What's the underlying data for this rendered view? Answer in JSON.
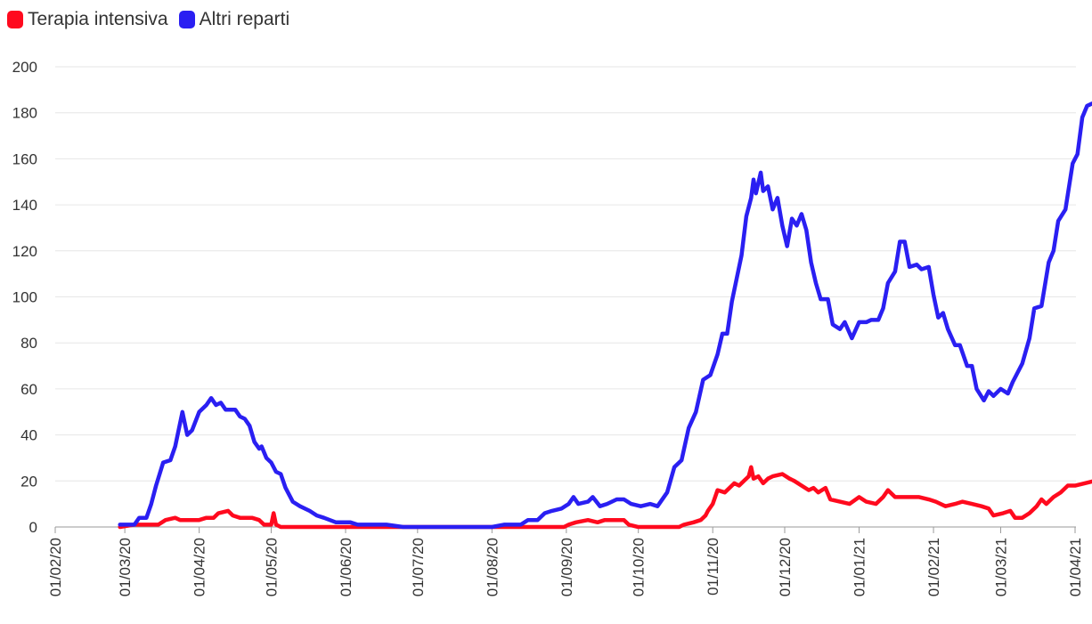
{
  "chart_data": {
    "type": "line",
    "title": "",
    "xlabel": "",
    "ylabel": "",
    "ylim": [
      0,
      200
    ],
    "yticks": [
      0,
      20,
      40,
      60,
      80,
      100,
      120,
      140,
      160,
      180,
      200
    ],
    "x_domain": [
      "2020-02-01",
      "2021-04-01"
    ],
    "xticks": [
      "01/02/20",
      "01/03/20",
      "01/04/20",
      "01/05/20",
      "01/06/20",
      "01/07/20",
      "01/08/20",
      "01/09/20",
      "01/10/20",
      "01/11/20",
      "01/12/20",
      "01/01/21",
      "01/02/21",
      "01/03/21",
      "01/04/21"
    ],
    "grid": true,
    "legend_position": "top-left",
    "series": [
      {
        "name": "Terapia intensiva",
        "color": "#ff0a1e",
        "points": [
          [
            "2020-02-28",
            0
          ],
          [
            "2020-03-05",
            1
          ],
          [
            "2020-03-15",
            1
          ],
          [
            "2020-03-18",
            3
          ],
          [
            "2020-03-22",
            4
          ],
          [
            "2020-03-24",
            3
          ],
          [
            "2020-04-01",
            3
          ],
          [
            "2020-04-04",
            4
          ],
          [
            "2020-04-07",
            4
          ],
          [
            "2020-04-09",
            6
          ],
          [
            "2020-04-13",
            7
          ],
          [
            "2020-04-15",
            5
          ],
          [
            "2020-04-18",
            4
          ],
          [
            "2020-04-23",
            4
          ],
          [
            "2020-04-26",
            3
          ],
          [
            "2020-04-28",
            1
          ],
          [
            "2020-05-01",
            1
          ],
          [
            "2020-05-02",
            6
          ],
          [
            "2020-05-03",
            1
          ],
          [
            "2020-05-05",
            0
          ],
          [
            "2020-06-01",
            0
          ],
          [
            "2020-07-01",
            0
          ],
          [
            "2020-08-01",
            0
          ],
          [
            "2020-08-31",
            0
          ],
          [
            "2020-09-02",
            1
          ],
          [
            "2020-09-05",
            2
          ],
          [
            "2020-09-10",
            3
          ],
          [
            "2020-09-14",
            2
          ],
          [
            "2020-09-17",
            3
          ],
          [
            "2020-09-25",
            3
          ],
          [
            "2020-09-27",
            1
          ],
          [
            "2020-10-01",
            0
          ],
          [
            "2020-10-18",
            0
          ],
          [
            "2020-10-20",
            1
          ],
          [
            "2020-10-24",
            2
          ],
          [
            "2020-10-27",
            3
          ],
          [
            "2020-10-29",
            5
          ],
          [
            "2020-10-30",
            7
          ],
          [
            "2020-11-01",
            10
          ],
          [
            "2020-11-03",
            16
          ],
          [
            "2020-11-06",
            15
          ],
          [
            "2020-11-08",
            17
          ],
          [
            "2020-11-10",
            19
          ],
          [
            "2020-11-12",
            18
          ],
          [
            "2020-11-14",
            20
          ],
          [
            "2020-11-16",
            22
          ],
          [
            "2020-11-17",
            26
          ],
          [
            "2020-11-18",
            21
          ],
          [
            "2020-11-20",
            22
          ],
          [
            "2020-11-22",
            19
          ],
          [
            "2020-11-24",
            21
          ],
          [
            "2020-11-26",
            22
          ],
          [
            "2020-11-30",
            23
          ],
          [
            "2020-12-03",
            21
          ],
          [
            "2020-12-05",
            20
          ],
          [
            "2020-12-08",
            18
          ],
          [
            "2020-12-11",
            16
          ],
          [
            "2020-12-13",
            17
          ],
          [
            "2020-12-15",
            15
          ],
          [
            "2020-12-18",
            17
          ],
          [
            "2020-12-20",
            12
          ],
          [
            "2020-12-24",
            11
          ],
          [
            "2020-12-28",
            10
          ],
          [
            "2021-01-01",
            13
          ],
          [
            "2021-01-04",
            11
          ],
          [
            "2021-01-08",
            10
          ],
          [
            "2021-01-11",
            13
          ],
          [
            "2021-01-13",
            16
          ],
          [
            "2021-01-16",
            13
          ],
          [
            "2021-01-20",
            13
          ],
          [
            "2021-01-24",
            13
          ],
          [
            "2021-01-26",
            13
          ],
          [
            "2021-01-30",
            12
          ],
          [
            "2021-02-02",
            11
          ],
          [
            "2021-02-06",
            9
          ],
          [
            "2021-02-10",
            10
          ],
          [
            "2021-02-13",
            11
          ],
          [
            "2021-02-17",
            10
          ],
          [
            "2021-02-21",
            9
          ],
          [
            "2021-02-24",
            8
          ],
          [
            "2021-02-26",
            5
          ],
          [
            "2021-03-02",
            6
          ],
          [
            "2021-03-05",
            7
          ],
          [
            "2021-03-07",
            4
          ],
          [
            "2021-03-10",
            4
          ],
          [
            "2021-03-13",
            6
          ],
          [
            "2021-03-16",
            9
          ],
          [
            "2021-03-18",
            12
          ],
          [
            "2021-03-20",
            10
          ],
          [
            "2021-03-23",
            13
          ],
          [
            "2021-03-26",
            15
          ],
          [
            "2021-03-29",
            18
          ],
          [
            "2021-04-01",
            18
          ],
          [
            "2021-04-05",
            19
          ],
          [
            "2021-04-09",
            20
          ],
          [
            "2021-04-11",
            20
          ]
        ]
      },
      {
        "name": "Altri reparti",
        "color": "#2a1ff2",
        "points": [
          [
            "2020-02-28",
            1
          ],
          [
            "2020-03-05",
            1
          ],
          [
            "2020-03-07",
            4
          ],
          [
            "2020-03-10",
            4
          ],
          [
            "2020-03-12",
            10
          ],
          [
            "2020-03-14",
            18
          ],
          [
            "2020-03-17",
            28
          ],
          [
            "2020-03-20",
            29
          ],
          [
            "2020-03-22",
            35
          ],
          [
            "2020-03-25",
            50
          ],
          [
            "2020-03-27",
            40
          ],
          [
            "2020-03-29",
            42
          ],
          [
            "2020-04-01",
            50
          ],
          [
            "2020-04-04",
            53
          ],
          [
            "2020-04-06",
            56
          ],
          [
            "2020-04-08",
            53
          ],
          [
            "2020-04-10",
            54
          ],
          [
            "2020-04-12",
            51
          ],
          [
            "2020-04-16",
            51
          ],
          [
            "2020-04-18",
            48
          ],
          [
            "2020-04-20",
            47
          ],
          [
            "2020-04-22",
            44
          ],
          [
            "2020-04-24",
            37
          ],
          [
            "2020-04-26",
            34
          ],
          [
            "2020-04-27",
            35
          ],
          [
            "2020-04-29",
            30
          ],
          [
            "2020-05-01",
            28
          ],
          [
            "2020-05-03",
            24
          ],
          [
            "2020-05-05",
            23
          ],
          [
            "2020-05-07",
            17
          ],
          [
            "2020-05-10",
            11
          ],
          [
            "2020-05-13",
            9
          ],
          [
            "2020-05-17",
            7
          ],
          [
            "2020-05-20",
            5
          ],
          [
            "2020-05-23",
            4
          ],
          [
            "2020-05-28",
            2
          ],
          [
            "2020-06-03",
            2
          ],
          [
            "2020-06-06",
            1
          ],
          [
            "2020-06-12",
            1
          ],
          [
            "2020-06-18",
            1
          ],
          [
            "2020-06-25",
            0
          ],
          [
            "2020-07-15",
            0
          ],
          [
            "2020-08-01",
            0
          ],
          [
            "2020-08-06",
            1
          ],
          [
            "2020-08-13",
            1
          ],
          [
            "2020-08-16",
            3
          ],
          [
            "2020-08-20",
            3
          ],
          [
            "2020-08-23",
            6
          ],
          [
            "2020-08-26",
            7
          ],
          [
            "2020-08-30",
            8
          ],
          [
            "2020-09-02",
            10
          ],
          [
            "2020-09-04",
            13
          ],
          [
            "2020-09-06",
            10
          ],
          [
            "2020-09-10",
            11
          ],
          [
            "2020-09-12",
            13
          ],
          [
            "2020-09-15",
            9
          ],
          [
            "2020-09-18",
            10
          ],
          [
            "2020-09-22",
            12
          ],
          [
            "2020-09-25",
            12
          ],
          [
            "2020-09-28",
            10
          ],
          [
            "2020-10-02",
            9
          ],
          [
            "2020-10-06",
            10
          ],
          [
            "2020-10-09",
            9
          ],
          [
            "2020-10-13",
            15
          ],
          [
            "2020-10-16",
            26
          ],
          [
            "2020-10-19",
            29
          ],
          [
            "2020-10-22",
            43
          ],
          [
            "2020-10-25",
            50
          ],
          [
            "2020-10-28",
            64
          ],
          [
            "2020-10-31",
            66
          ],
          [
            "2020-11-03",
            75
          ],
          [
            "2020-11-05",
            84
          ],
          [
            "2020-11-07",
            84
          ],
          [
            "2020-11-09",
            98
          ],
          [
            "2020-11-11",
            108
          ],
          [
            "2020-11-13",
            118
          ],
          [
            "2020-11-15",
            135
          ],
          [
            "2020-11-17",
            143
          ],
          [
            "2020-11-18",
            151
          ],
          [
            "2020-11-19",
            145
          ],
          [
            "2020-11-21",
            154
          ],
          [
            "2020-11-22",
            146
          ],
          [
            "2020-11-24",
            148
          ],
          [
            "2020-11-26",
            138
          ],
          [
            "2020-11-28",
            143
          ],
          [
            "2020-11-30",
            131
          ],
          [
            "2020-12-02",
            122
          ],
          [
            "2020-12-04",
            134
          ],
          [
            "2020-12-06",
            131
          ],
          [
            "2020-12-08",
            136
          ],
          [
            "2020-12-10",
            129
          ],
          [
            "2020-12-12",
            115
          ],
          [
            "2020-12-14",
            106
          ],
          [
            "2020-12-16",
            99
          ],
          [
            "2020-12-19",
            99
          ],
          [
            "2020-12-21",
            88
          ],
          [
            "2020-12-24",
            86
          ],
          [
            "2020-12-26",
            89
          ],
          [
            "2020-12-29",
            82
          ],
          [
            "2021-01-01",
            89
          ],
          [
            "2021-01-04",
            89
          ],
          [
            "2021-01-06",
            90
          ],
          [
            "2021-01-09",
            90
          ],
          [
            "2021-01-11",
            95
          ],
          [
            "2021-01-13",
            106
          ],
          [
            "2021-01-16",
            111
          ],
          [
            "2021-01-18",
            124
          ],
          [
            "2021-01-20",
            124
          ],
          [
            "2021-01-22",
            113
          ],
          [
            "2021-01-25",
            114
          ],
          [
            "2021-01-27",
            112
          ],
          [
            "2021-01-30",
            113
          ],
          [
            "2021-02-01",
            101
          ],
          [
            "2021-02-03",
            91
          ],
          [
            "2021-02-05",
            93
          ],
          [
            "2021-02-07",
            86
          ],
          [
            "2021-02-10",
            79
          ],
          [
            "2021-02-12",
            79
          ],
          [
            "2021-02-15",
            70
          ],
          [
            "2021-02-17",
            70
          ],
          [
            "2021-02-19",
            60
          ],
          [
            "2021-02-22",
            55
          ],
          [
            "2021-02-24",
            59
          ],
          [
            "2021-02-26",
            57
          ],
          [
            "2021-03-01",
            60
          ],
          [
            "2021-03-04",
            58
          ],
          [
            "2021-03-06",
            63
          ],
          [
            "2021-03-10",
            71
          ],
          [
            "2021-03-13",
            82
          ],
          [
            "2021-03-15",
            95
          ],
          [
            "2021-03-18",
            96
          ],
          [
            "2021-03-21",
            115
          ],
          [
            "2021-03-23",
            120
          ],
          [
            "2021-03-25",
            133
          ],
          [
            "2021-03-28",
            138
          ],
          [
            "2021-03-31",
            158
          ],
          [
            "2021-04-02",
            162
          ],
          [
            "2021-04-04",
            178
          ],
          [
            "2021-04-06",
            183
          ],
          [
            "2021-04-08",
            184
          ]
        ]
      }
    ]
  }
}
